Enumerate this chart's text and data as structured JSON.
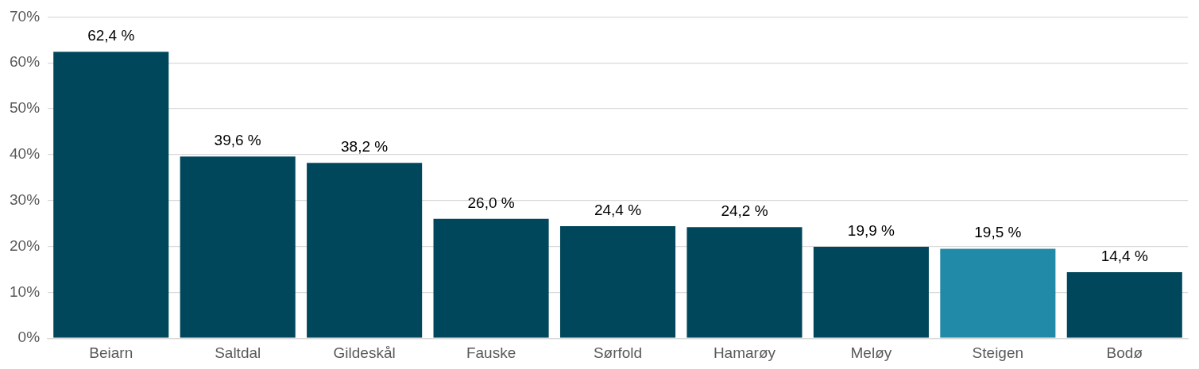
{
  "chart_data": {
    "type": "bar",
    "categories": [
      "Beiarn",
      "Saltdal",
      "Gildeskål",
      "Fauske",
      "Sørfold",
      "Hamarøy",
      "Meløy",
      "Steigen",
      "Bodø"
    ],
    "values": [
      62.4,
      39.6,
      38.2,
      26.0,
      24.4,
      24.2,
      19.9,
      19.5,
      14.4
    ],
    "colors": [
      "#00475b",
      "#00475b",
      "#00475b",
      "#00475b",
      "#00475b",
      "#00475b",
      "#00475b",
      "#208aa8",
      "#00475b"
    ],
    "value_labels": [
      "62,4 %",
      "39,6 %",
      "38,2 %",
      "26,0 %",
      "24,4 %",
      "24,2 %",
      "19,9 %",
      "19,5 %",
      "14,4 %"
    ],
    "ylim": [
      0,
      70
    ],
    "yticks": [
      {
        "value": 0,
        "label": "0%"
      },
      {
        "value": 10,
        "label": "10%"
      },
      {
        "value": 20,
        "label": "20%"
      },
      {
        "value": 30,
        "label": "30%"
      },
      {
        "value": 40,
        "label": "40%"
      },
      {
        "value": 50,
        "label": "50%"
      },
      {
        "value": 60,
        "label": "60%"
      },
      {
        "value": 70,
        "label": "70%"
      }
    ],
    "grid": "y",
    "legend": false
  }
}
